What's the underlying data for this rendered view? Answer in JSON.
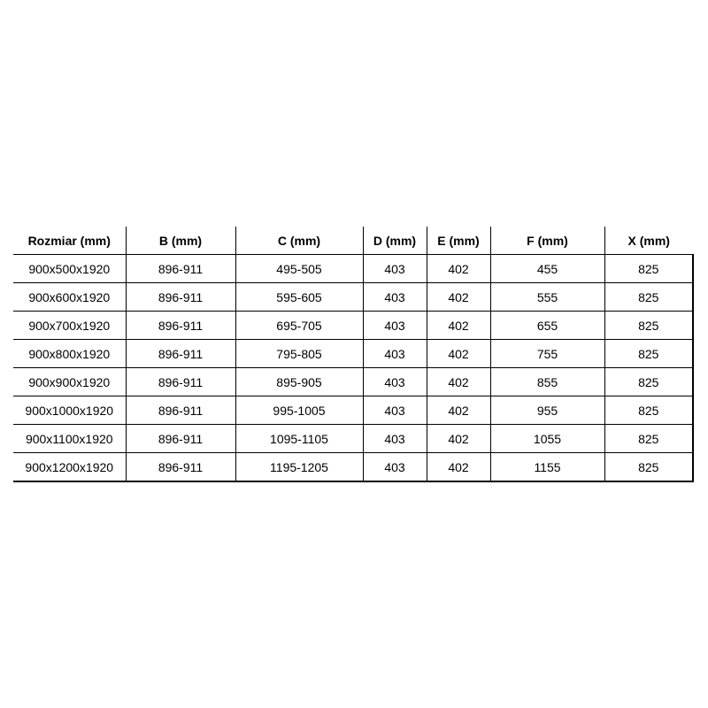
{
  "headers": [
    "Rozmiar (mm)",
    "B (mm)",
    "C (mm)",
    "D (mm)",
    "E (mm)",
    "F (mm)",
    "X (mm)"
  ],
  "rows": [
    [
      "900x500x1920",
      "896-911",
      "495-505",
      "403",
      "402",
      "455",
      "825"
    ],
    [
      "900x600x1920",
      "896-911",
      "595-605",
      "403",
      "402",
      "555",
      "825"
    ],
    [
      "900x700x1920",
      "896-911",
      "695-705",
      "403",
      "402",
      "655",
      "825"
    ],
    [
      "900x800x1920",
      "896-911",
      "795-805",
      "403",
      "402",
      "755",
      "825"
    ],
    [
      "900x900x1920",
      "896-911",
      "895-905",
      "403",
      "402",
      "855",
      "825"
    ],
    [
      "900x1000x1920",
      "896-911",
      "995-1005",
      "403",
      "402",
      "955",
      "825"
    ],
    [
      "900x1100x1920",
      "896-911",
      "1095-1105",
      "403",
      "402",
      "1055",
      "825"
    ],
    [
      "900x1200x1920",
      "896-911",
      "1195-1205",
      "403",
      "402",
      "1155",
      "825"
    ]
  ]
}
